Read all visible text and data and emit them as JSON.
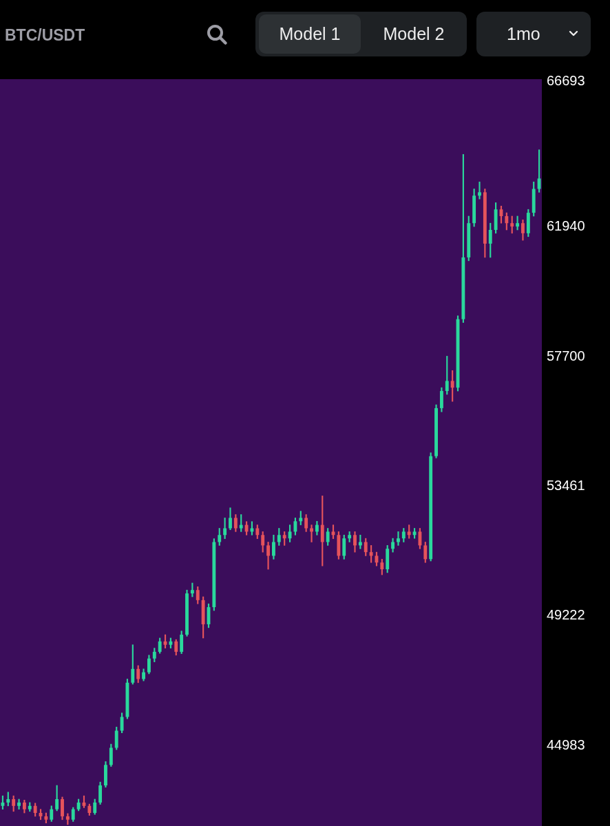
{
  "chart_data": {
    "type": "candlestick",
    "title": "BTC/USDT",
    "annotations": [
      "Model 1",
      "Model 2",
      "1mo"
    ],
    "categories": [
      null,
      null,
      null,
      null,
      null,
      null,
      null,
      null,
      null,
      null,
      null,
      null,
      null,
      null,
      null,
      null,
      null,
      null,
      null,
      null,
      null,
      null,
      null,
      null,
      null,
      null,
      null,
      null,
      null,
      null,
      null,
      null,
      null,
      null,
      null,
      null,
      null,
      null,
      null,
      null,
      null,
      null,
      null,
      null,
      null,
      null,
      null,
      null,
      null,
      null,
      null,
      null,
      null,
      null,
      null,
      null,
      null,
      null,
      null,
      null,
      null,
      null,
      null,
      null,
      null,
      null,
      null,
      null,
      null,
      null,
      null,
      null,
      null,
      null,
      null,
      null,
      null,
      null,
      null,
      null,
      null,
      null,
      null,
      null,
      null,
      null,
      null,
      null,
      null,
      null,
      null,
      null,
      null,
      null,
      null,
      null,
      null,
      null,
      null,
      null
    ],
    "ohlc": [
      [
        43010,
        43340,
        42900,
        43120
      ],
      [
        43120,
        43460,
        43010,
        43230
      ],
      [
        43230,
        43340,
        42830,
        43010
      ],
      [
        43010,
        43230,
        42900,
        43120
      ],
      [
        43120,
        43200,
        42780,
        42900
      ],
      [
        42900,
        43120,
        42830,
        43010
      ],
      [
        43010,
        43100,
        42670,
        42780
      ],
      [
        42780,
        42900,
        42560,
        42670
      ],
      [
        42670,
        42780,
        42450,
        42560
      ],
      [
        42560,
        43010,
        42500,
        42900
      ],
      [
        42900,
        43680,
        42850,
        43230
      ],
      [
        43230,
        43300,
        42560,
        42670
      ],
      [
        42670,
        42760,
        42400,
        42560
      ],
      [
        42560,
        42960,
        42500,
        42900
      ],
      [
        42900,
        43230,
        42850,
        43120
      ],
      [
        43120,
        43340,
        42950,
        43010
      ],
      [
        43010,
        43070,
        42700,
        42780
      ],
      [
        42780,
        43230,
        42730,
        43120
      ],
      [
        43120,
        43790,
        43060,
        43680
      ],
      [
        43680,
        44460,
        43620,
        44350
      ],
      [
        44350,
        45030,
        44300,
        44910
      ],
      [
        44910,
        45590,
        44850,
        45470
      ],
      [
        45470,
        46050,
        45400,
        45920
      ],
      [
        45920,
        47160,
        45860,
        47040
      ],
      [
        47040,
        48280,
        46990,
        47490
      ],
      [
        47490,
        47600,
        47040,
        47160
      ],
      [
        47160,
        47490,
        47100,
        47380
      ],
      [
        47380,
        47940,
        47330,
        47830
      ],
      [
        47830,
        48170,
        47720,
        48050
      ],
      [
        48050,
        48500,
        48000,
        48390
      ],
      [
        48390,
        48610,
        48170,
        48280
      ],
      [
        48280,
        48500,
        48170,
        48390
      ],
      [
        48390,
        48450,
        47940,
        48050
      ],
      [
        48050,
        48730,
        47990,
        48610
      ],
      [
        48610,
        50070,
        48560,
        49960
      ],
      [
        49960,
        50300,
        49850,
        50070
      ],
      [
        50070,
        50180,
        49620,
        49740
      ],
      [
        49740,
        49850,
        48500,
        48950
      ],
      [
        48950,
        49620,
        48840,
        49510
      ],
      [
        49510,
        51750,
        49400,
        51640
      ],
      [
        51640,
        52090,
        51530,
        51870
      ],
      [
        51870,
        52430,
        51750,
        52090
      ],
      [
        52090,
        52760,
        52040,
        52430
      ],
      [
        52430,
        52540,
        51980,
        52090
      ],
      [
        52090,
        52540,
        51980,
        52200
      ],
      [
        52200,
        52310,
        51870,
        51980
      ],
      [
        51980,
        52310,
        51870,
        52090
      ],
      [
        52090,
        52200,
        51750,
        51870
      ],
      [
        51870,
        51980,
        51310,
        51530
      ],
      [
        51530,
        51640,
        50750,
        51190
      ],
      [
        51190,
        51870,
        51080,
        51640
      ],
      [
        51640,
        52090,
        51530,
        51870
      ],
      [
        51870,
        51980,
        51530,
        51760
      ],
      [
        51760,
        52200,
        51640,
        51980
      ],
      [
        51980,
        52430,
        51870,
        52320
      ],
      [
        52320,
        52650,
        52200,
        52430
      ],
      [
        52430,
        52540,
        51980,
        52090
      ],
      [
        52090,
        52200,
        51640,
        51980
      ],
      [
        51980,
        52320,
        51870,
        52200
      ],
      [
        52200,
        53150,
        50860,
        51640
      ],
      [
        51640,
        52090,
        51530,
        51980
      ],
      [
        51980,
        52200,
        51750,
        51870
      ],
      [
        51870,
        51980,
        51080,
        51190
      ],
      [
        51190,
        51870,
        51080,
        51760
      ],
      [
        51760,
        51980,
        51640,
        51870
      ],
      [
        51870,
        51980,
        51310,
        51530
      ],
      [
        51530,
        51870,
        51420,
        51640
      ],
      [
        51640,
        51760,
        51190,
        51310
      ],
      [
        51310,
        51530,
        50970,
        51190
      ],
      [
        51190,
        51310,
        50860,
        50970
      ],
      [
        50970,
        51080,
        50570,
        50750
      ],
      [
        50750,
        51530,
        50640,
        51420
      ],
      [
        51420,
        51760,
        51310,
        51640
      ],
      [
        51640,
        51980,
        51530,
        51760
      ],
      [
        51760,
        52090,
        51640,
        51980
      ],
      [
        51980,
        52200,
        51760,
        51870
      ],
      [
        51870,
        52090,
        51760,
        51980
      ],
      [
        51980,
        52090,
        51420,
        51530
      ],
      [
        51530,
        51640,
        50970,
        51080
      ],
      [
        51080,
        54560,
        51020,
        54450
      ],
      [
        54450,
        56130,
        54390,
        56020
      ],
      [
        56020,
        56690,
        55900,
        56580
      ],
      [
        56580,
        57720,
        56470,
        56910
      ],
      [
        56910,
        57250,
        56240,
        56690
      ],
      [
        56690,
        59040,
        56580,
        58930
      ],
      [
        58930,
        64320,
        58820,
        60950
      ],
      [
        60950,
        62300,
        60840,
        62070
      ],
      [
        62070,
        63190,
        61960,
        62970
      ],
      [
        62970,
        63420,
        62860,
        63080
      ],
      [
        63080,
        63190,
        60950,
        61400
      ],
      [
        61400,
        62070,
        60950,
        61850
      ],
      [
        61850,
        62740,
        61740,
        62520
      ],
      [
        62520,
        62630,
        62070,
        62300
      ],
      [
        62300,
        62410,
        61850,
        62070
      ],
      [
        62070,
        62300,
        61740,
        61960
      ],
      [
        61960,
        62300,
        61850,
        62070
      ],
      [
        62070,
        62180,
        61510,
        61740
      ],
      [
        61740,
        62520,
        61630,
        62410
      ],
      [
        62410,
        63420,
        62300,
        63190
      ],
      [
        63190,
        64470,
        63080,
        63530
      ]
    ],
    "colors": [
      "#2ad89c",
      "#2ad89c",
      "#e5535b",
      "#2ad89c",
      "#e5535b",
      "#2ad89c",
      "#e5535b",
      "#e5535b",
      "#e5535b",
      "#2ad89c",
      "#2ad89c",
      "#e5535b",
      "#e5535b",
      "#2ad89c",
      "#2ad89c",
      "#e5535b",
      "#e5535b",
      "#2ad89c",
      "#2ad89c",
      "#2ad89c",
      "#2ad89c",
      "#2ad89c",
      "#2ad89c",
      "#2ad89c",
      "#2ad89c",
      "#e5535b",
      "#2ad89c",
      "#2ad89c",
      "#2ad89c",
      "#2ad89c",
      "#e5535b",
      "#2ad89c",
      "#e5535b",
      "#2ad89c",
      "#2ad89c",
      "#2ad89c",
      "#e5535b",
      "#e5535b",
      "#2ad89c",
      "#2ad89c",
      "#2ad89c",
      "#2ad89c",
      "#2ad89c",
      "#e5535b",
      "#2ad89c",
      "#e5535b",
      "#2ad89c",
      "#e5535b",
      "#e5535b",
      "#e5535b",
      "#2ad89c",
      "#2ad89c",
      "#e5535b",
      "#2ad89c",
      "#2ad89c",
      "#2ad89c",
      "#e5535b",
      "#e5535b",
      "#2ad89c",
      "#e5535b",
      "#2ad89c",
      "#e5535b",
      "#e5535b",
      "#2ad89c",
      "#2ad89c",
      "#e5535b",
      "#2ad89c",
      "#e5535b",
      "#e5535b",
      "#e5535b",
      "#e5535b",
      "#2ad89c",
      "#2ad89c",
      "#2ad89c",
      "#2ad89c",
      "#e5535b",
      "#2ad89c",
      "#e5535b",
      "#e5535b",
      "#2ad89c",
      "#2ad89c",
      "#2ad89c",
      "#2ad89c",
      "#e5535b",
      "#2ad89c",
      "#2ad89c",
      "#2ad89c",
      "#2ad89c",
      "#2ad89c",
      "#e5535b",
      "#2ad89c",
      "#2ad89c",
      "#e5535b",
      "#e5535b",
      "#e5535b",
      "#2ad89c",
      "#e5535b",
      "#2ad89c",
      "#2ad89c",
      "#2ad89c"
    ],
    "ylim": [
      42330,
      66780
    ],
    "yticks": [
      44983,
      49222,
      53461,
      57700,
      61940,
      66693
    ]
  }
}
